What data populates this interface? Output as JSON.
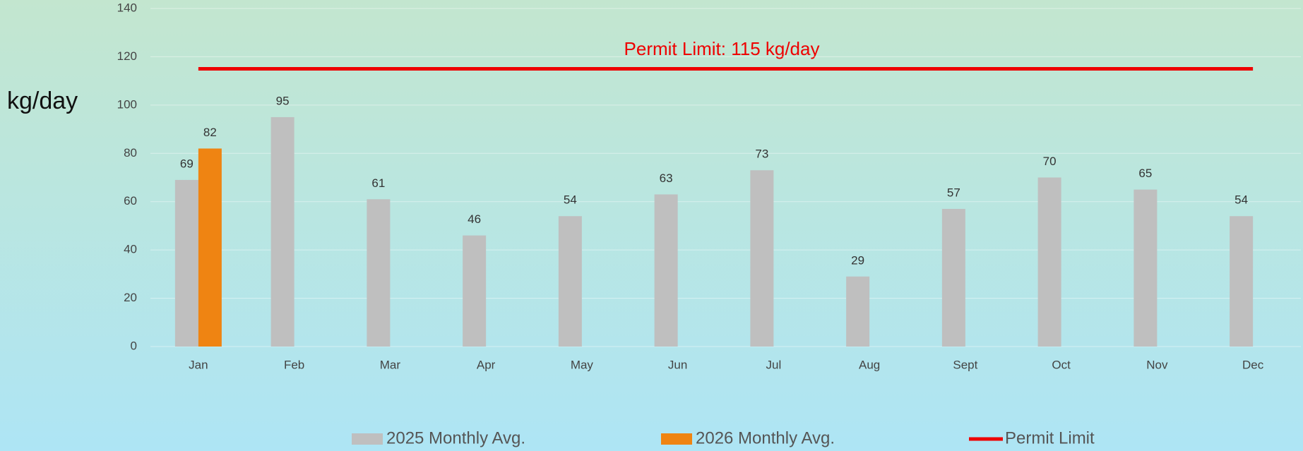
{
  "chart_data": {
    "type": "bar",
    "y_label": "kg/day",
    "annotation": "Permit Limit: 115 kg/day",
    "categories": [
      "Jan",
      "Feb",
      "Mar",
      "Apr",
      "May",
      "Jun",
      "Jul",
      "Aug",
      "Sept",
      "Oct",
      "Nov",
      "Dec"
    ],
    "series": [
      {
        "name": "2025 Monthly Avg.",
        "color": "#bfbfbf",
        "values": [
          69,
          95,
          61,
          46,
          54,
          63,
          73,
          29,
          57,
          70,
          65,
          54
        ]
      },
      {
        "name": "2026 Monthly Avg.",
        "color": "#ef8412",
        "values": [
          82,
          null,
          null,
          null,
          null,
          null,
          null,
          null,
          null,
          null,
          null,
          null
        ]
      },
      {
        "name": "Permit Limit",
        "color": "#ee0000",
        "type": "line",
        "values": [
          115,
          115,
          115,
          115,
          115,
          115,
          115,
          115,
          115,
          115,
          115,
          115
        ]
      }
    ],
    "ylim": [
      0,
      140
    ],
    "yticks": [
      0,
      20,
      40,
      60,
      80,
      100,
      120,
      140
    ],
    "grid": true,
    "legend": "bottom"
  }
}
